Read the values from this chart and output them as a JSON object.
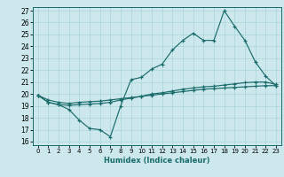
{
  "xlabel": "Humidex (Indice chaleur)",
  "bg_color": "#cce8ec",
  "grid_color": "#a8d5da",
  "line_color": "#1a6b6b",
  "xlim": [
    -0.5,
    23.5
  ],
  "ylim": [
    15.7,
    27.3
  ],
  "xticks": [
    0,
    1,
    2,
    3,
    4,
    5,
    6,
    7,
    8,
    9,
    10,
    11,
    12,
    13,
    14,
    15,
    16,
    17,
    18,
    19,
    20,
    21,
    22,
    23
  ],
  "yticks": [
    16,
    17,
    18,
    19,
    20,
    21,
    22,
    23,
    24,
    25,
    26,
    27
  ],
  "line1_x": [
    0,
    1,
    2,
    3,
    4,
    5,
    6,
    7,
    8,
    9,
    10,
    11,
    12,
    13,
    14,
    15,
    16,
    17,
    18,
    19,
    20,
    21,
    22,
    23
  ],
  "line1_y": [
    19.9,
    19.3,
    19.1,
    18.7,
    17.8,
    17.1,
    17.0,
    16.4,
    19.0,
    21.2,
    21.4,
    22.1,
    22.5,
    23.7,
    24.5,
    25.1,
    24.5,
    24.5,
    27.0,
    25.7,
    24.5,
    22.7,
    21.5,
    20.7
  ],
  "line2_x": [
    0,
    1,
    2,
    3,
    4,
    5,
    6,
    7,
    8,
    9,
    10,
    11,
    12,
    13,
    14,
    15,
    16,
    17,
    18,
    19,
    20,
    21,
    22,
    23
  ],
  "line2_y": [
    19.9,
    19.3,
    19.1,
    19.05,
    19.1,
    19.15,
    19.2,
    19.3,
    19.5,
    19.65,
    19.8,
    20.0,
    20.1,
    20.25,
    20.4,
    20.5,
    20.6,
    20.65,
    20.75,
    20.85,
    20.95,
    21.0,
    21.0,
    20.8
  ],
  "line3_x": [
    0,
    1,
    2,
    3,
    4,
    5,
    6,
    7,
    8,
    9,
    10,
    11,
    12,
    13,
    14,
    15,
    16,
    17,
    18,
    19,
    20,
    21,
    22,
    23
  ],
  "line3_y": [
    19.9,
    19.5,
    19.3,
    19.2,
    19.3,
    19.35,
    19.4,
    19.5,
    19.6,
    19.7,
    19.8,
    19.9,
    20.0,
    20.1,
    20.2,
    20.3,
    20.4,
    20.45,
    20.5,
    20.55,
    20.6,
    20.65,
    20.7,
    20.7
  ]
}
